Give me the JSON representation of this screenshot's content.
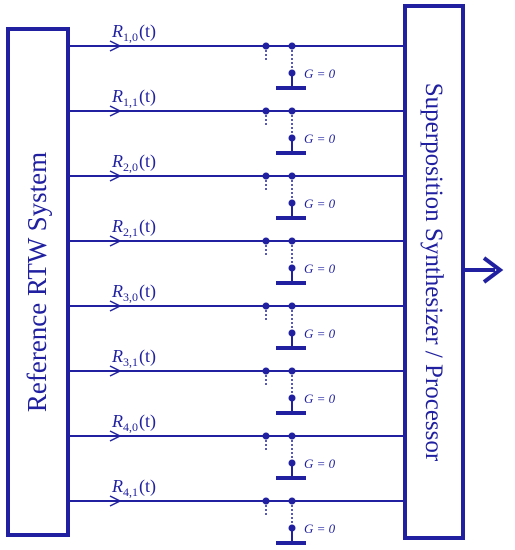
{
  "source_box": {
    "label": "Reference RTW System"
  },
  "sink_box": {
    "label": "Superposition Synthesizer / Processor"
  },
  "signals": [
    {
      "symbol": "R",
      "subscript": "1,0",
      "argument": "(t)",
      "switch_label": "G = 0"
    },
    {
      "symbol": "R",
      "subscript": "1,1",
      "argument": "(t)",
      "switch_label": "G = 0"
    },
    {
      "symbol": "R",
      "subscript": "2,0",
      "argument": "(t)",
      "switch_label": "G = 0"
    },
    {
      "symbol": "R",
      "subscript": "2,1",
      "argument": "(t)",
      "switch_label": "G = 0"
    },
    {
      "symbol": "R",
      "subscript": "3,0",
      "argument": "(t)",
      "switch_label": "G = 0"
    },
    {
      "symbol": "R",
      "subscript": "3,1",
      "argument": "(t)",
      "switch_label": "G = 0"
    },
    {
      "symbol": "R",
      "subscript": "4,0",
      "argument": "(t)",
      "switch_label": "G = 0"
    },
    {
      "symbol": "R",
      "subscript": "4,1",
      "argument": "(t)",
      "switch_label": "G = 0"
    }
  ]
}
